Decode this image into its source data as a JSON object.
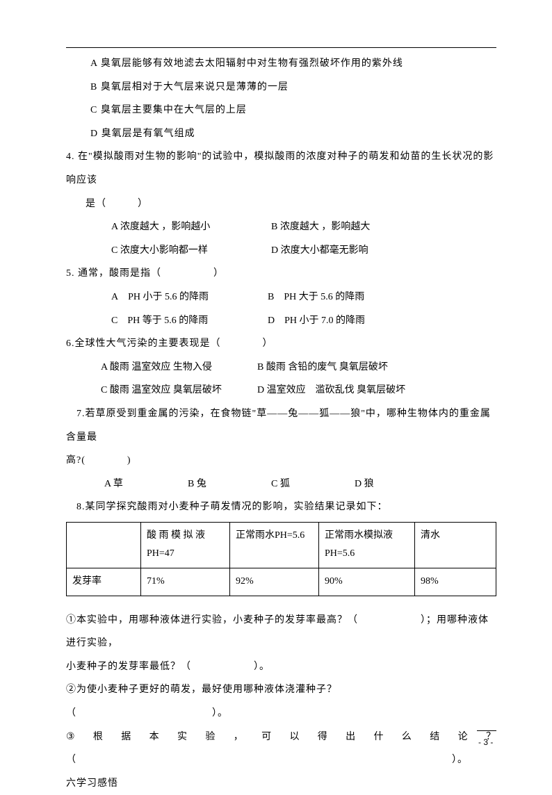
{
  "q3": {
    "opts": [
      "A 臭氧层能够有效地滤去太阳辐射中对生物有强烈破坏作用的紫外线",
      "B 臭氧层相对于大气层来说只是薄薄的一层",
      "C 臭氧层主要集中在大气层的上层",
      "D 臭氧层是有氧气组成"
    ]
  },
  "q4": {
    "stem": "4. 在\"模拟酸雨对生物的影响\"的试验中，模拟酸雨的浓度对种子的萌发和幼苗的生长状况的影响应该",
    "stem2": "是（　　　）",
    "optA": "A 浓度越大 ，影响越小",
    "optB": "B 浓度越大 ，影响越大",
    "optC": "C 浓度大小影响都一样",
    "optD": "D 浓度大小都毫无影响"
  },
  "q5": {
    "stem": "5. 通常，酸雨是指（　　　　　）",
    "optA": "A PH 小于 5.6 的降雨",
    "optB": "B PH 大于 5.6 的降雨",
    "optC": "C PH 等于 5.6 的降雨",
    "optD": "D PH 小于 7.0 的降雨"
  },
  "q6": {
    "stem": "6.全球性大气污染的主要表现是（　　　　）",
    "optA": "A 酸雨 温室效应 生物入侵",
    "optB": "B 酸雨 含铅的废气 臭氧层破坏",
    "optC": "C 酸雨 温室效应 臭氧层破坏",
    "optD": "D 温室效应 滥砍乱伐 臭氧层破坏"
  },
  "q7": {
    "stem": " 7.若草原受到重金属的污染，在食物链\"草——兔——狐——狼\"中，哪种生物体内的重金属 含量最",
    "stem2": "高?(　　　　)",
    "optA": "A 草",
    "optB": "B 兔",
    "optC": "C 狐",
    "optD": "D 狼"
  },
  "q8": {
    "stem": " 8.某同学探究酸雨对小麦种子萌发情况的影响，实验结果记录如下：",
    "table": {
      "header": [
        "",
        "酸 雨 模 拟 液PH=47",
        "正常雨水PH=5.6",
        "正常雨水模拟液PH=5.6",
        "清水"
      ],
      "row_label": "发芽率",
      "row": [
        "71%",
        "92%",
        "90%",
        "98%"
      ]
    },
    "sub1a": "①本实验中，用哪种液体进行实验，小麦种子的发芽率最高？（　　　　　　）；用哪种液体进行实验，",
    "sub1b": "小麦种子的发芽率最低？（　　　　　　）。",
    "sub2": "②为使小麦种子更好的萌发，最好使用哪种液体浇灌种子？（　　　　　　　　　　　　　）。",
    "sub3_chars": [
      "③",
      "根",
      "据",
      "本",
      "实",
      "验",
      "，",
      "可",
      "以",
      "得",
      "出",
      "什",
      "么",
      "结",
      "论",
      "？"
    ],
    "sub3b": "（　　　　　　　　　　　　　　　　　　　　　　　　　　　　　　　　　　　　）。"
  },
  "section6": "六学习感悟",
  "pagenum": "- 3 -"
}
